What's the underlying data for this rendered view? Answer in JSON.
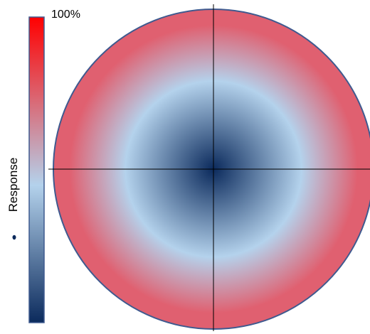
{
  "chart_data": {
    "type": "heatmap",
    "title": "",
    "colorbar": {
      "label": "Response",
      "max_label": "100%",
      "stops": [
        {
          "value": 0.0,
          "color": "#0b2a5c"
        },
        {
          "value": 0.45,
          "color": "#b4d2ec"
        },
        {
          "value": 1.0,
          "color": "#ff0000"
        }
      ]
    },
    "map": {
      "shape": "disk",
      "radial_profile": [
        {
          "r": 0.0,
          "color": "#0b2a5c"
        },
        {
          "r": 0.55,
          "color": "#b4d2ec"
        },
        {
          "r": 0.9,
          "color": "#e06070"
        },
        {
          "r": 1.0,
          "color": "#e06070"
        }
      ],
      "crosshair": true,
      "border_color": "#3f5a8f"
    },
    "grid": false,
    "legend": "colorbar-left"
  }
}
